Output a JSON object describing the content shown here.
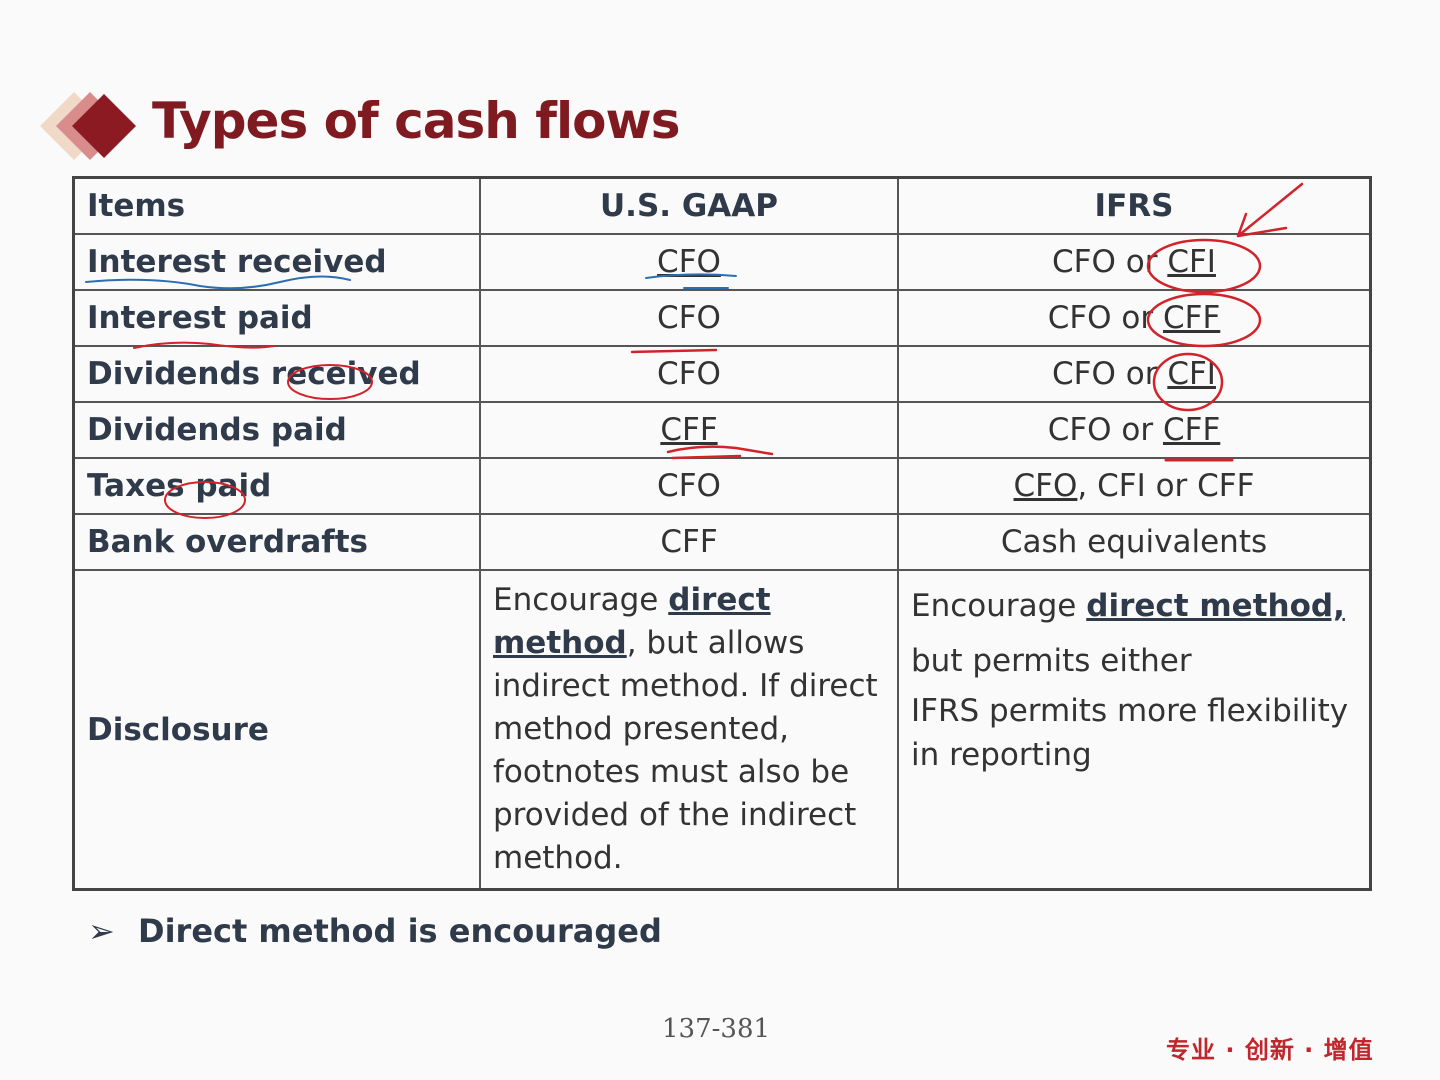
{
  "title": "Types of cash flows",
  "table": {
    "headers": [
      "Items",
      "U.S. GAAP",
      "IFRS"
    ],
    "rows": [
      {
        "item": "Interest received",
        "gaap": "CFO",
        "ifrs_a": "CFO or ",
        "ifrs_b": "CFI"
      },
      {
        "item": "Interest paid",
        "gaap": "CFO",
        "ifrs_a": "CFO or ",
        "ifrs_b": "CFF"
      },
      {
        "item": "Dividends received",
        "gaap": "CFO",
        "ifrs_a": "CFO or ",
        "ifrs_b": "CFI"
      },
      {
        "item": "Dividends paid",
        "gaap": "CFF",
        "ifrs_a": "CFO or ",
        "ifrs_b": "CFF"
      },
      {
        "item": "Taxes paid",
        "gaap": "CFO",
        "ifrs_a": "CFO",
        "ifrs_b": ", CFI or CFF"
      },
      {
        "item": "Bank overdrafts",
        "gaap": "CFF",
        "ifrs_a": "Cash equivalents",
        "ifrs_b": ""
      }
    ],
    "disclosure": {
      "item": "Disclosure",
      "gaap_1": "Encourage ",
      "gaap_bold": "direct method",
      "gaap_2": ", but allows indirect method. If direct method presented, footnotes must also be provided of the indirect method.",
      "ifrs_1": "Encourage ",
      "ifrs_bold": "direct method,",
      "ifrs_2": "but permits either",
      "ifrs_3": "IFRS permits more flexibility in reporting"
    }
  },
  "bullet": "Direct method is encouraged",
  "page_number": "137-381",
  "slogan": "专业 · 创新 · 增值",
  "colors": {
    "title": "#7e1a20",
    "ink_red": "#d2222a",
    "ink_blue": "#2c6fb0",
    "slogan": "#c0272d"
  }
}
